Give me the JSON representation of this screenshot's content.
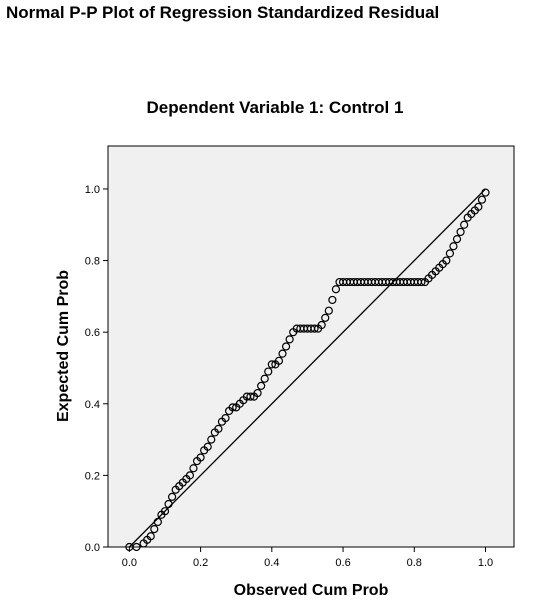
{
  "chart_data": {
    "type": "scatter",
    "title": "Normal P-P Plot of Regression Standardized Residual",
    "subtitle": "Dependent Variable 1: Control 1",
    "xlabel": "Observed Cum Prob",
    "ylabel": "Expected Cum Prob",
    "xlim": [
      -0.06,
      1.08
    ],
    "ylim": [
      0.0,
      1.12
    ],
    "xticks": [
      "0.0",
      "0.2",
      "0.4",
      "0.6",
      "0.8",
      "1.0"
    ],
    "yticks": [
      "0.0",
      "0.2",
      "0.4",
      "0.6",
      "0.8",
      "1.0"
    ],
    "xtick_values": [
      0.0,
      0.2,
      0.4,
      0.6,
      0.8,
      1.0
    ],
    "ytick_values": [
      0.0,
      0.2,
      0.4,
      0.6,
      0.8,
      1.0
    ],
    "background": "#f0f0f0",
    "grid": false,
    "reference_line": {
      "x": [
        0,
        1
      ],
      "y": [
        0,
        1
      ]
    },
    "series": [
      {
        "marker": "open-circle",
        "x": [
          0.0,
          0.02,
          0.04,
          0.05,
          0.06,
          0.07,
          0.08,
          0.09,
          0.1,
          0.11,
          0.12,
          0.13,
          0.14,
          0.15,
          0.16,
          0.17,
          0.18,
          0.19,
          0.2,
          0.21,
          0.22,
          0.23,
          0.24,
          0.25,
          0.26,
          0.27,
          0.28,
          0.29,
          0.3,
          0.31,
          0.32,
          0.33,
          0.34,
          0.35,
          0.36,
          0.37,
          0.38,
          0.39,
          0.4,
          0.41,
          0.42,
          0.43,
          0.44,
          0.45,
          0.46,
          0.47,
          0.48,
          0.49,
          0.5,
          0.51,
          0.52,
          0.53,
          0.54,
          0.55,
          0.56,
          0.57,
          0.58,
          0.59,
          0.6,
          0.61,
          0.62,
          0.63,
          0.64,
          0.65,
          0.66,
          0.67,
          0.68,
          0.69,
          0.7,
          0.71,
          0.72,
          0.73,
          0.74,
          0.75,
          0.76,
          0.77,
          0.78,
          0.79,
          0.8,
          0.81,
          0.82,
          0.83,
          0.84,
          0.85,
          0.86,
          0.87,
          0.88,
          0.89,
          0.9,
          0.91,
          0.92,
          0.93,
          0.94,
          0.95,
          0.96,
          0.97,
          0.98,
          0.99,
          1.0
        ],
        "y": [
          0.0,
          0.0,
          0.01,
          0.02,
          0.03,
          0.05,
          0.07,
          0.09,
          0.1,
          0.12,
          0.14,
          0.16,
          0.17,
          0.18,
          0.19,
          0.2,
          0.22,
          0.24,
          0.25,
          0.27,
          0.28,
          0.3,
          0.32,
          0.33,
          0.35,
          0.36,
          0.38,
          0.39,
          0.39,
          0.4,
          0.41,
          0.42,
          0.42,
          0.42,
          0.43,
          0.45,
          0.47,
          0.49,
          0.51,
          0.51,
          0.52,
          0.54,
          0.56,
          0.58,
          0.6,
          0.61,
          0.61,
          0.61,
          0.61,
          0.61,
          0.61,
          0.61,
          0.62,
          0.64,
          0.66,
          0.69,
          0.72,
          0.74,
          0.74,
          0.74,
          0.74,
          0.74,
          0.74,
          0.74,
          0.74,
          0.74,
          0.74,
          0.74,
          0.74,
          0.74,
          0.74,
          0.74,
          0.74,
          0.74,
          0.74,
          0.74,
          0.74,
          0.74,
          0.74,
          0.74,
          0.74,
          0.74,
          0.75,
          0.76,
          0.77,
          0.78,
          0.79,
          0.8,
          0.82,
          0.84,
          0.86,
          0.88,
          0.9,
          0.92,
          0.93,
          0.94,
          0.95,
          0.97,
          0.99
        ]
      }
    ]
  }
}
